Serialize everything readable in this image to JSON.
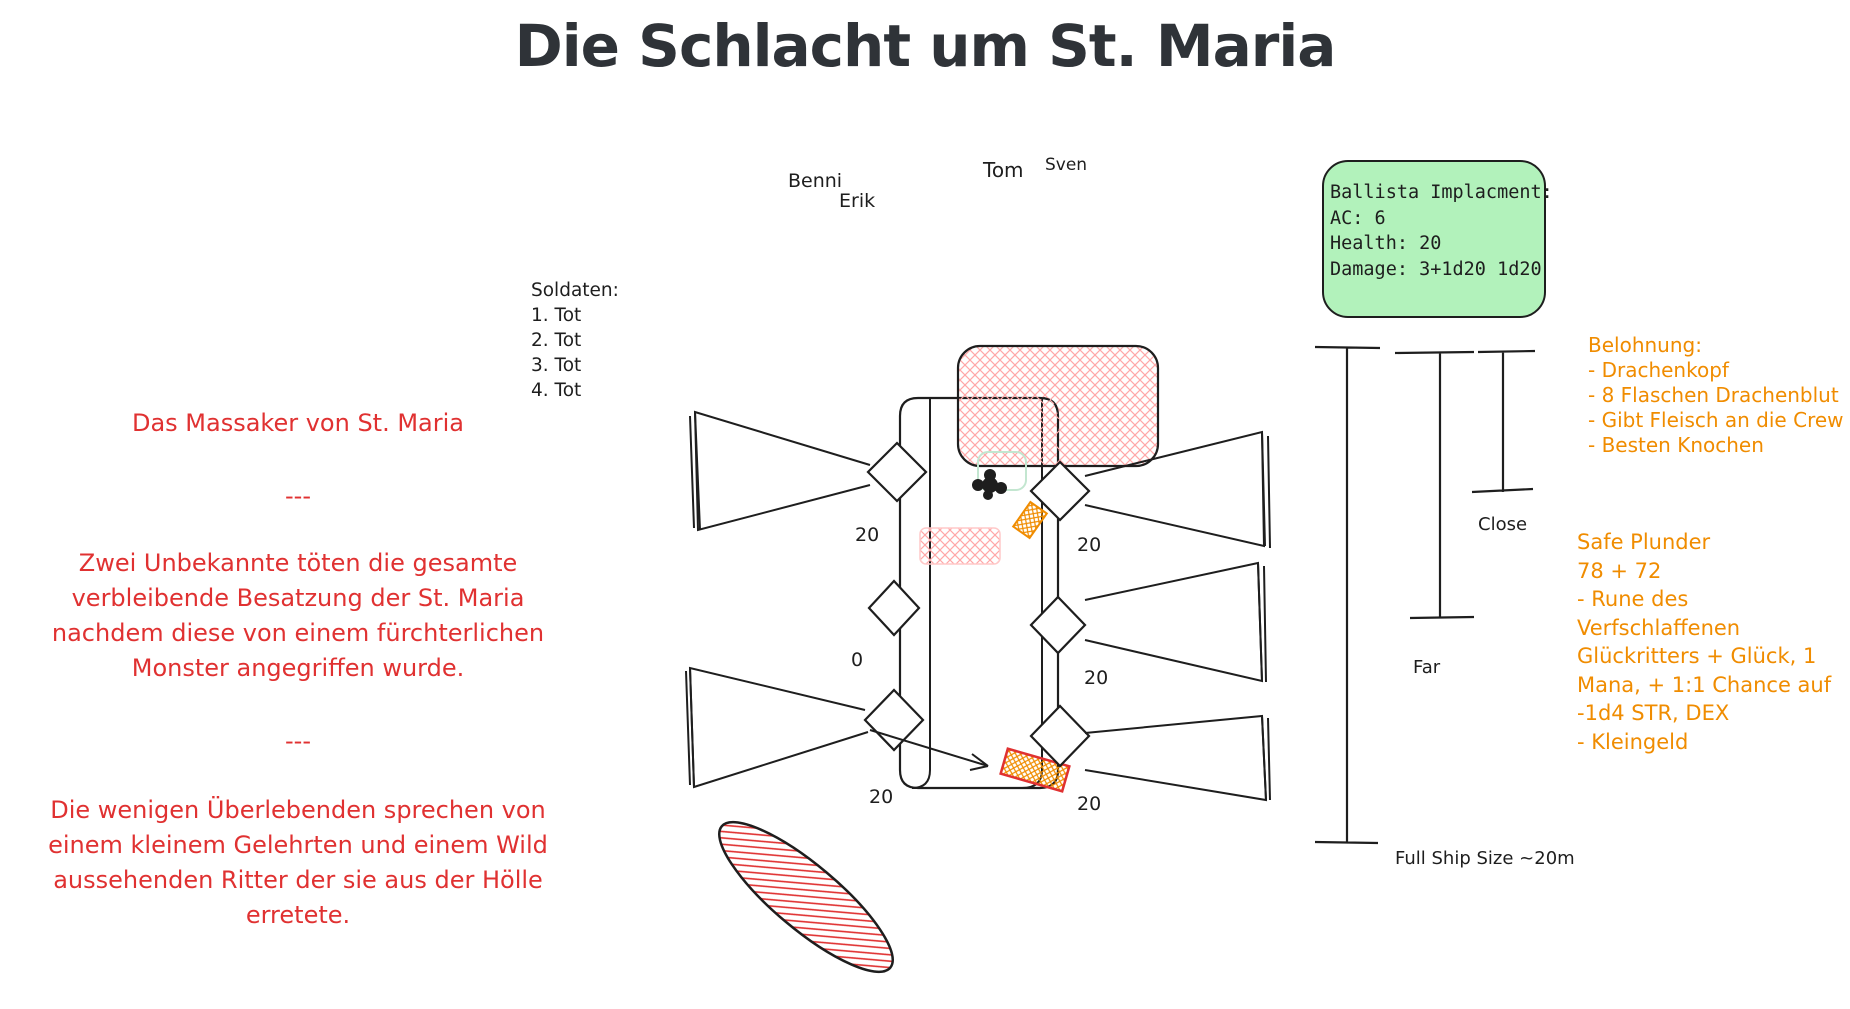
{
  "title": "Die Schlacht um St. Maria",
  "players": [
    "Benni",
    "Erik",
    "Tom",
    "Sven"
  ],
  "soldaten": {
    "heading": "Soldaten:",
    "entries": [
      "1. Tot",
      "2. Tot",
      "3. Tot",
      "4. Tot"
    ]
  },
  "story": {
    "title": "Das Massaker von St. Maria",
    "separator": "---",
    "paragraph1": "Zwei Unbekannte töten die gesamte\nverbleibende Besatzung der St. Maria\nnachdem diese von einem fürchterlichen\nMonster angegriffen wurde.",
    "paragraph2": "Die wenigen Überlebenden sprechen von\neinem kleinem Gelehrten und einem Wild\naussehenden Ritter der sie aus der Hölle\nerretete."
  },
  "ballista": {
    "lines": [
      "Ballista Implacment:",
      "AC: 6",
      "Health: 20",
      "Damage: 3+1d20 1d20"
    ]
  },
  "belohnung": {
    "heading": "Belohnung:",
    "items": [
      "- Drachenkopf",
      "- 8 Flaschen Drachenblut",
      "- Gibt Fleisch an die Crew",
      "- Besten Knochen"
    ]
  },
  "safe_plunder": {
    "lines": [
      "Safe Plunder",
      "78 + 72",
      "- Rune des",
      "Verfschlaffenen",
      "Glückritters + Glück, 1",
      "Mana, + 1:1 Chance auf",
      "-1d4 STR, DEX",
      "- Kleingeld"
    ]
  },
  "ballista_hp": {
    "left_top": "20",
    "right_top": "20",
    "left_mid": "0",
    "right_mid": "20",
    "left_bottom": "20",
    "right_bottom": "20"
  },
  "ranges": {
    "close": "Close",
    "far": "Far",
    "full": "Full Ship Size ~20m"
  },
  "colors": {
    "title": "#2f3338",
    "story": "#e03131",
    "reward": "#f08c00",
    "ballista_fill": "#b2f2bb",
    "hatch_red": "#ff8787",
    "stroke": "#1e1e1e"
  }
}
